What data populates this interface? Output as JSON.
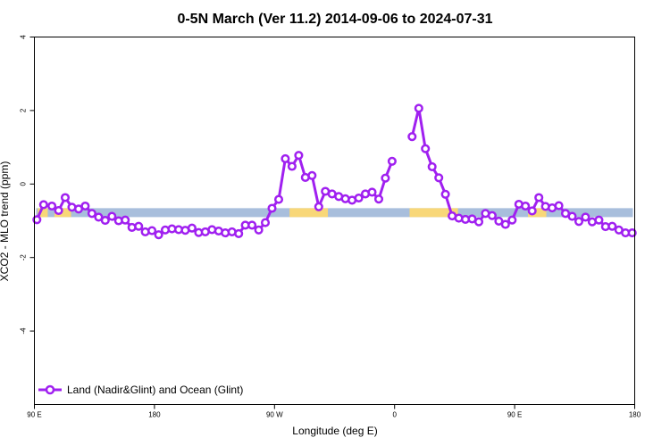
{
  "chart_data": {
    "type": "line",
    "title": "0-5N March (Ver 11.2)   2014-09-06 to 2024-07-31",
    "xlabel": "Longitude (deg E)",
    "ylabel": "XCO2 - MLO trend (ppm)",
    "xlim": [
      0,
      360
    ],
    "ylim": [
      -6,
      4
    ],
    "x_ticks": [
      {
        "value": 0,
        "label": "90 E"
      },
      {
        "value": 72,
        "label": "180"
      },
      {
        "value": 144,
        "label": "90 W"
      },
      {
        "value": 216,
        "label": "0"
      },
      {
        "value": 288,
        "label": "90 E"
      },
      {
        "value": 360,
        "label": "180"
      }
    ],
    "y_ticks": [
      {
        "value": -4,
        "label": "-4"
      },
      {
        "value": -2,
        "label": "-2"
      },
      {
        "value": 0,
        "label": "0"
      },
      {
        "value": 2,
        "label": "2"
      },
      {
        "value": 4,
        "label": "4"
      }
    ],
    "grid": false,
    "legend_position": "bottom-left",
    "surface_band": {
      "y_center": -0.78,
      "colors": {
        "ocean": "#a8bedc",
        "land": "#f8d778"
      },
      "land_segments": [
        [
          2,
          8
        ],
        [
          12,
          22
        ],
        [
          153,
          176
        ],
        [
          225,
          254
        ],
        [
          296,
          307
        ]
      ]
    },
    "series": [
      {
        "name": "Land (Nadir&Glint) and Ocean (Glint)",
        "color": "#a020f0",
        "segments": [
          {
            "x": [
              1.5,
              5.5,
              10.5,
              14.5,
              18.5,
              22.5,
              26.5,
              30.5,
              34.5,
              38.5,
              42.5,
              46.5,
              50.5,
              54.5,
              58.5,
              62.5,
              66.5,
              70.5,
              74.5,
              78.5,
              82.5,
              86.5,
              90.5,
              94.5,
              98.5,
              102.5,
              106.5,
              110.5,
              114.5,
              118.5,
              122.5,
              126.5,
              130.5,
              134.5,
              138.5,
              142.5,
              146.5,
              150.5,
              154.5,
              158.5,
              162.5,
              166.5,
              170.5,
              174.5,
              178.5,
              182.5,
              186.5,
              190.5,
              194.5,
              198.5,
              202.5,
              206.5,
              210.5,
              214.5,
              218.5,
              222.5
            ],
            "y": [
              -0.97,
              -0.56,
              -0.6,
              -0.72,
              -0.37,
              -0.63,
              -0.68,
              -0.6,
              -0.8,
              -0.9,
              -0.99,
              -0.88,
              -1.0,
              -0.98,
              -1.18,
              -1.15,
              -1.3,
              -1.27,
              -1.38,
              -1.25,
              -1.22,
              -1.24,
              -1.26,
              -1.2,
              -1.32,
              -1.3,
              -1.24,
              -1.28,
              -1.33,
              -1.3,
              -1.35,
              -1.12,
              -1.12,
              -1.25,
              -1.05,
              -0.66,
              -0.42,
              0.69,
              0.48,
              0.78,
              0.18,
              0.23,
              -0.62,
              -0.2,
              -0.27,
              -0.34,
              -0.4,
              -0.44,
              -0.38,
              -0.27,
              -0.22,
              -0.41,
              0.16,
              0.62,
              null,
              null
            ]
          },
          {
            "x": [
              226.5,
              230.5,
              234.5,
              238.5,
              242.5,
              246.5,
              250.5,
              254.5,
              258.5,
              262.5,
              266.5,
              270.5,
              274.5,
              278.5,
              282.5,
              286.5,
              290.5,
              294.5,
              298.5,
              302.5,
              306.5,
              310.5,
              314.5,
              318.5,
              322.5,
              326.5,
              330.5,
              334.5,
              338.5,
              342.5,
              346.5,
              350.5,
              354.5,
              358.5
            ],
            "y": [
              1.29,
              2.06,
              0.96,
              0.47,
              0.17,
              -0.28,
              -0.87,
              -0.93,
              -0.96,
              -0.95,
              -1.03,
              -0.8,
              -0.86,
              -1.01,
              -1.1,
              -0.98,
              -0.55,
              -0.6,
              -0.73,
              -0.37,
              -0.61,
              -0.65,
              -0.59,
              -0.8,
              -0.88,
              -1.02,
              -0.9,
              -1.03,
              -0.98,
              -1.16,
              -1.15,
              -1.25,
              -1.33,
              -1.33
            ]
          }
        ]
      }
    ]
  }
}
